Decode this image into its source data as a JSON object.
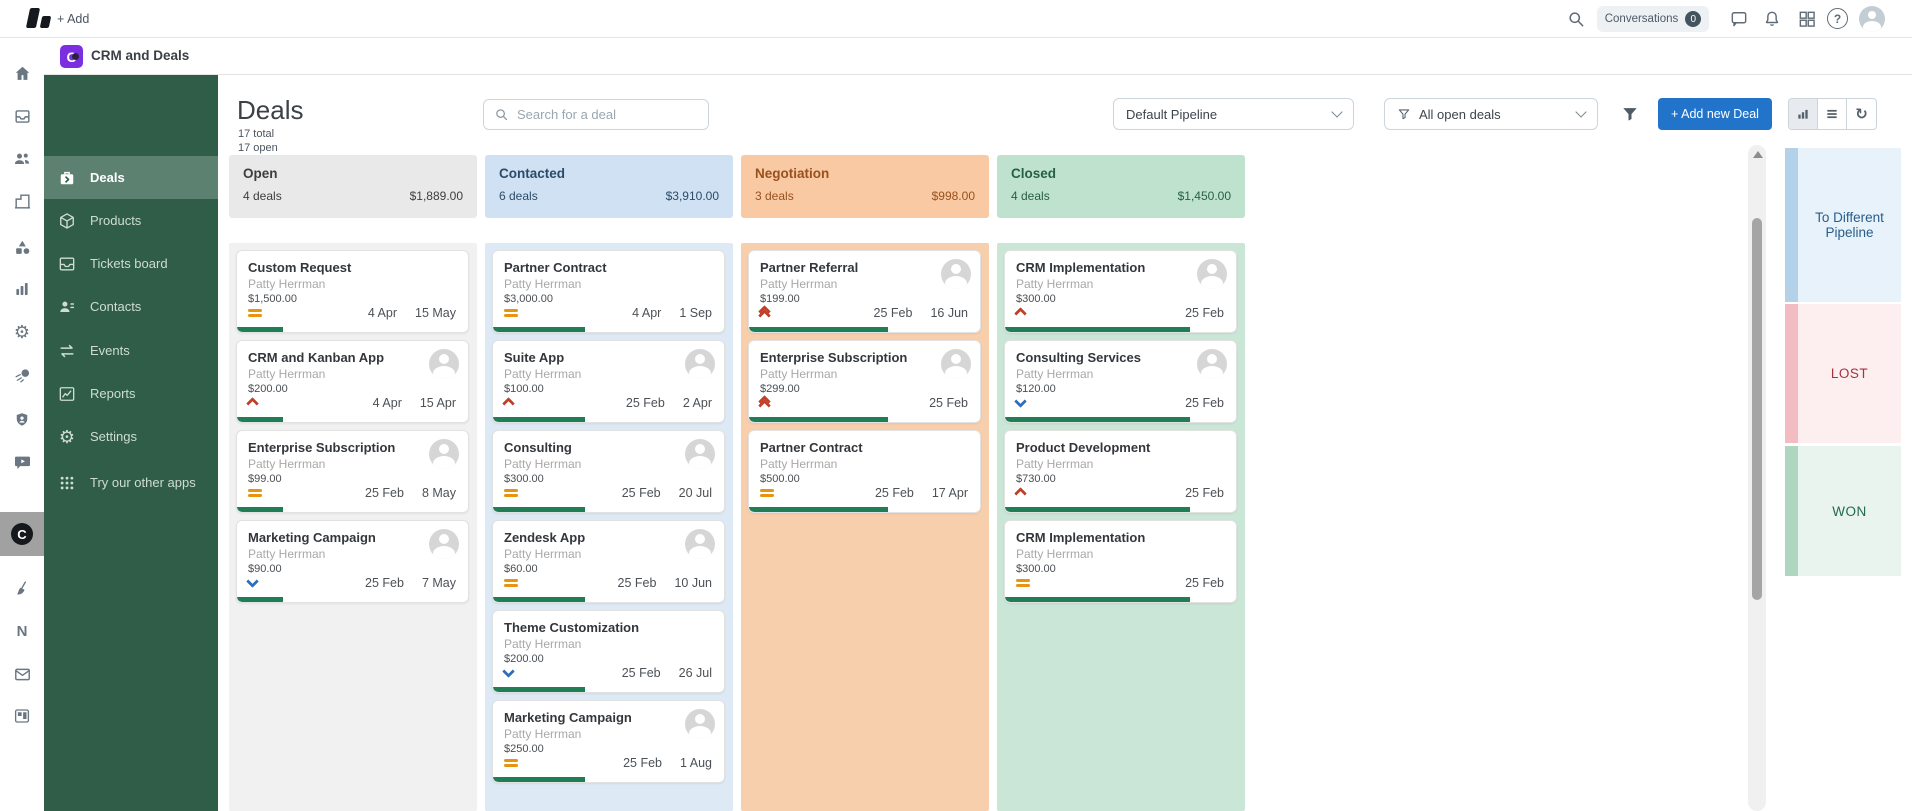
{
  "topbar": {
    "add_label": "+ Add",
    "conversations_label": "Conversations",
    "conversations_count": "0"
  },
  "app_header": {
    "title": "CRM and Deals",
    "app_icon_letter": "C"
  },
  "rail": {
    "items": [
      "home",
      "tickets",
      "contacts",
      "organizations",
      "shapes",
      "analytics",
      "settings",
      "comet",
      "shield",
      "video-chat",
      "crm-app",
      "broom",
      "notes",
      "mail",
      "kanban-board"
    ],
    "active_item": "crm-app"
  },
  "sidebar": {
    "items": [
      {
        "label": "Deals",
        "active": true
      },
      {
        "label": "Products"
      },
      {
        "label": "Tickets board"
      },
      {
        "label": "Contacts"
      },
      {
        "label": "Events"
      },
      {
        "label": "Reports"
      },
      {
        "label": "Settings"
      },
      {
        "label": "Try our other apps"
      }
    ]
  },
  "toolbar": {
    "page_title": "Deals",
    "total_label": "17 total",
    "open_label": "17 open",
    "search_placeholder": "Search for a deal",
    "pipeline_selected": "Default Pipeline",
    "deals_filter_selected": "All open deals",
    "add_deal_label": "+ Add new Deal"
  },
  "board": {
    "columns": [
      {
        "name": "Open",
        "count": "4 deals",
        "total": "$1,889.00",
        "theme": "gray",
        "progress_pct": 20,
        "cards": [
          {
            "title": "Custom Request",
            "contact": "Patty Herrman",
            "amount": "$1,500.00",
            "priority": "medium",
            "dates": [
              "4 Apr",
              "15 May"
            ],
            "has_avatar": false
          },
          {
            "title": "CRM and Kanban App",
            "contact": "Patty Herrman",
            "amount": "$200.00",
            "priority": "high",
            "dates": [
              "4 Apr",
              "15 Apr"
            ],
            "has_avatar": true
          },
          {
            "title": "Enterprise Subscription",
            "contact": "Patty Herrman",
            "amount": "$99.00",
            "priority": "medium",
            "dates": [
              "25 Feb",
              "8 May"
            ],
            "has_avatar": true
          },
          {
            "title": "Marketing Campaign",
            "contact": "Patty Herrman",
            "amount": "$90.00",
            "priority": "low",
            "dates": [
              "25 Feb",
              "7 May"
            ],
            "has_avatar": true
          }
        ]
      },
      {
        "name": "Contacted",
        "count": "6 deals",
        "total": "$3,910.00",
        "theme": "blue",
        "progress_pct": 40,
        "cards": [
          {
            "title": "Partner Contract",
            "contact": "Patty Herrman",
            "amount": "$3,000.00",
            "priority": "medium",
            "dates": [
              "4 Apr",
              "1 Sep"
            ],
            "has_avatar": false
          },
          {
            "title": "Suite App",
            "contact": "Patty Herrman",
            "amount": "$100.00",
            "priority": "high",
            "dates": [
              "25 Feb",
              "2 Apr"
            ],
            "has_avatar": true
          },
          {
            "title": "Consulting",
            "contact": "Patty Herrman",
            "amount": "$300.00",
            "priority": "medium",
            "dates": [
              "25 Feb",
              "20 Jul"
            ],
            "has_avatar": true
          },
          {
            "title": "Zendesk App",
            "contact": "Patty Herrman",
            "amount": "$60.00",
            "priority": "medium",
            "dates": [
              "25 Feb",
              "10 Jun"
            ],
            "has_avatar": true
          },
          {
            "title": "Theme Customization",
            "contact": "Patty Herrman",
            "amount": "$200.00",
            "priority": "low",
            "dates": [
              "25 Feb",
              "26 Jul"
            ],
            "has_avatar": false
          },
          {
            "title": "Marketing Campaign",
            "contact": "Patty Herrman",
            "amount": "$250.00",
            "priority": "medium",
            "dates": [
              "25 Feb",
              "1 Aug"
            ],
            "has_avatar": true
          }
        ]
      },
      {
        "name": "Negotiation",
        "count": "3 deals",
        "total": "$998.00",
        "theme": "orange",
        "progress_pct": 60,
        "cards": [
          {
            "title": "Partner Referral",
            "contact": "Patty Herrman",
            "amount": "$199.00",
            "priority": "highest",
            "dates": [
              "25 Feb",
              "16 Jun"
            ],
            "has_avatar": true
          },
          {
            "title": "Enterprise Subscription",
            "contact": "Patty Herrman",
            "amount": "$299.00",
            "priority": "highest",
            "dates": [
              "25 Feb"
            ],
            "has_avatar": true
          },
          {
            "title": "Partner Contract",
            "contact": "Patty Herrman",
            "amount": "$500.00",
            "priority": "medium",
            "dates": [
              "25 Feb",
              "17 Apr"
            ],
            "has_avatar": false
          }
        ]
      },
      {
        "name": "Closed",
        "count": "4 deals",
        "total": "$1,450.00",
        "theme": "green",
        "progress_pct": 80,
        "cards": [
          {
            "title": "CRM Implementation",
            "contact": "Patty Herrman",
            "amount": "$300.00",
            "priority": "high",
            "dates": [
              "25 Feb"
            ],
            "has_avatar": true
          },
          {
            "title": "Consulting Services",
            "contact": "Patty Herrman",
            "amount": "$120.00",
            "priority": "low",
            "dates": [
              "25 Feb"
            ],
            "has_avatar": true
          },
          {
            "title": "Product Development",
            "contact": "Patty Herrman",
            "amount": "$730.00",
            "priority": "high",
            "dates": [
              "25 Feb"
            ],
            "has_avatar": false
          },
          {
            "title": "CRM Implementation",
            "contact": "Patty Herrman",
            "amount": "$300.00",
            "priority": "medium",
            "dates": [
              "25 Feb"
            ],
            "has_avatar": false
          }
        ]
      }
    ]
  },
  "dropzones": [
    {
      "label": "To Different Pipeline",
      "theme": "blue"
    },
    {
      "label": "LOST",
      "theme": "red"
    },
    {
      "label": "WON",
      "theme": "green"
    }
  ],
  "colors": {
    "accent_blue": "#2274cb",
    "sidebar_green": "#2f5d48",
    "sidebar_active_green": "#5d8171",
    "app_icon_purple": "#7b2fe0",
    "open_header": "#e9e9e9",
    "contacted_header": "#cfe1f2",
    "negotiation_header": "#f8c9a2",
    "closed_header": "#bfe2cf",
    "progress_green": "#1f7e55",
    "priority_orange": "#e8940f",
    "priority_red": "#c2402a",
    "priority_blue": "#2d6fbe",
    "zone_pipeline_bg": "#e7f2fb",
    "zone_lost_bg": "#fdeef0",
    "zone_won_bg": "#eaf4ef"
  }
}
